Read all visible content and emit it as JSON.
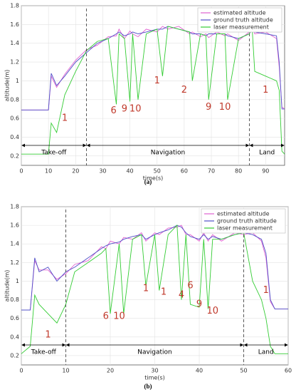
{
  "chart_data": [
    {
      "type": "line",
      "caption": "(a)",
      "xlabel": "time(s)",
      "ylabel": "altitude(m)",
      "xlim": [
        0,
        97
      ],
      "xticks": [
        0,
        10,
        20,
        30,
        40,
        50,
        60,
        70,
        80,
        90
      ],
      "ylim": [
        0.1,
        1.8
      ],
      "yticks": [
        0.2,
        0.4,
        0.6,
        0.8,
        1,
        1.2,
        1.4,
        1.6,
        1.8
      ],
      "grid": true,
      "legend": "upper right",
      "x": [
        0,
        10,
        11,
        13,
        16,
        20,
        24,
        28,
        32,
        35,
        36,
        38,
        40,
        41,
        43,
        46,
        50,
        52,
        54,
        58,
        62,
        63,
        66,
        68,
        69,
        72,
        75,
        76,
        80,
        84,
        85,
        86,
        90,
        94,
        95,
        96,
        97
      ],
      "series": [
        {
          "name": "estimated altitude",
          "color": "#e060d0",
          "values": [
            0.69,
            0.69,
            1.05,
            0.93,
            1.07,
            1.22,
            1.33,
            1.38,
            1.47,
            1.48,
            1.55,
            1.45,
            1.53,
            1.5,
            1.47,
            1.55,
            1.52,
            1.58,
            1.55,
            1.58,
            1.5,
            1.52,
            1.47,
            1.5,
            1.46,
            1.52,
            1.48,
            1.5,
            1.43,
            1.52,
            1.57,
            1.5,
            1.52,
            1.45,
            1.15,
            0.72,
            0.7
          ]
        },
        {
          "name": "ground truth altitude",
          "color": "#5050c8",
          "values": [
            0.69,
            0.69,
            1.08,
            0.95,
            1.05,
            1.2,
            1.3,
            1.4,
            1.45,
            1.5,
            1.52,
            1.48,
            1.5,
            1.52,
            1.5,
            1.52,
            1.55,
            1.55,
            1.58,
            1.55,
            1.52,
            1.5,
            1.5,
            1.48,
            1.5,
            1.5,
            1.5,
            1.48,
            1.45,
            1.5,
            1.55,
            1.52,
            1.5,
            1.48,
            1.2,
            0.7,
            0.7
          ]
        },
        {
          "name": "laser measurement",
          "color": "#33cc33",
          "values": [
            0.22,
            0.22,
            0.55,
            0.45,
            0.85,
            1.1,
            1.32,
            1.42,
            1.45,
            0.75,
            1.5,
            1.45,
            0.78,
            1.5,
            0.8,
            1.5,
            1.55,
            1.05,
            1.58,
            1.55,
            1.52,
            1.0,
            1.5,
            1.48,
            0.8,
            1.5,
            1.5,
            0.8,
            1.45,
            1.5,
            1.58,
            1.1,
            1.05,
            1.0,
            0.9,
            0.25,
            0.22
          ]
        }
      ],
      "phases": [
        {
          "label": "Take-off",
          "x": [
            0,
            24
          ]
        },
        {
          "label": "Navigation",
          "x": [
            24,
            84
          ]
        },
        {
          "label": "Land",
          "x": [
            84,
            97
          ]
        }
      ],
      "annotations": [
        {
          "text": "1",
          "x": 16,
          "y": 0.6
        },
        {
          "text": "6",
          "x": 34,
          "y": 0.68
        },
        {
          "text": "9",
          "x": 38,
          "y": 0.7
        },
        {
          "text": "10",
          "x": 42,
          "y": 0.7
        },
        {
          "text": "1",
          "x": 50,
          "y": 1.0
        },
        {
          "text": "2",
          "x": 60,
          "y": 0.9
        },
        {
          "text": "9",
          "x": 69,
          "y": 0.72
        },
        {
          "text": "10",
          "x": 75,
          "y": 0.72
        },
        {
          "text": "1",
          "x": 90,
          "y": 0.9
        }
      ]
    },
    {
      "type": "line",
      "caption": "(b)",
      "xlabel": "time(s)",
      "ylabel": "altitude(m)",
      "xlim": [
        0,
        60
      ],
      "xticks": [
        0,
        10,
        20,
        30,
        40,
        50,
        60
      ],
      "ylim": [
        0.1,
        1.8
      ],
      "yticks": [
        0.2,
        0.4,
        0.6,
        0.8,
        1,
        1.2,
        1.4,
        1.6,
        1.8
      ],
      "grid": true,
      "legend": "upper right",
      "x": [
        0,
        2,
        3,
        4,
        6,
        8,
        10,
        12,
        15,
        18,
        19,
        20,
        22,
        23,
        25,
        27,
        28,
        30,
        31,
        33,
        35,
        36,
        37,
        38,
        40,
        41,
        42,
        43,
        45,
        48,
        50,
        52,
        54,
        55,
        56,
        57,
        58,
        60
      ],
      "series": [
        {
          "name": "estimated altitude",
          "color": "#e060d0",
          "values": [
            0.69,
            0.69,
            1.22,
            1.12,
            1.12,
            1.02,
            1.08,
            1.18,
            1.22,
            1.37,
            1.35,
            1.43,
            1.4,
            1.47,
            1.45,
            1.52,
            1.43,
            1.52,
            1.5,
            1.57,
            1.58,
            1.6,
            1.5,
            1.5,
            1.43,
            1.52,
            1.43,
            1.5,
            1.43,
            1.52,
            1.5,
            1.52,
            1.43,
            1.25,
            0.78,
            0.7,
            0.7,
            0.7
          ]
        },
        {
          "name": "ground truth altitude",
          "color": "#5050c8",
          "values": [
            0.69,
            0.69,
            1.25,
            1.1,
            1.15,
            1.0,
            1.1,
            1.15,
            1.25,
            1.35,
            1.38,
            1.4,
            1.42,
            1.45,
            1.48,
            1.5,
            1.45,
            1.5,
            1.52,
            1.55,
            1.6,
            1.58,
            1.52,
            1.48,
            1.45,
            1.5,
            1.45,
            1.48,
            1.45,
            1.5,
            1.52,
            1.5,
            1.45,
            1.3,
            0.8,
            0.7,
            0.7,
            0.7
          ]
        },
        {
          "name": "laser measurement",
          "color": "#33cc33",
          "values": [
            0.22,
            0.3,
            0.85,
            0.75,
            0.65,
            0.55,
            0.75,
            1.1,
            1.2,
            1.3,
            1.35,
            0.65,
            1.4,
            0.65,
            1.45,
            1.5,
            0.95,
            1.5,
            0.9,
            1.5,
            1.6,
            0.8,
            1.5,
            0.75,
            0.72,
            1.45,
            0.7,
            1.45,
            1.45,
            1.5,
            1.52,
            1.0,
            0.8,
            0.6,
            0.3,
            0.22,
            0.22,
            0.22
          ]
        }
      ],
      "phases": [
        {
          "label": "Take-off",
          "x": [
            0,
            10
          ]
        },
        {
          "label": "Navigation",
          "x": [
            10,
            50
          ]
        },
        {
          "label": "Land",
          "x": [
            50,
            60
          ]
        }
      ],
      "annotations": [
        {
          "text": "1",
          "x": 6,
          "y": 0.42
        },
        {
          "text": "6",
          "x": 19,
          "y": 0.62
        },
        {
          "text": "10",
          "x": 22,
          "y": 0.62
        },
        {
          "text": "1",
          "x": 28,
          "y": 0.92
        },
        {
          "text": "1",
          "x": 32,
          "y": 0.88
        },
        {
          "text": "4",
          "x": 36,
          "y": 0.85
        },
        {
          "text": "6",
          "x": 38,
          "y": 0.95
        },
        {
          "text": "9",
          "x": 40,
          "y": 0.75
        },
        {
          "text": "10",
          "x": 43,
          "y": 0.68
        },
        {
          "text": "1",
          "x": 55,
          "y": 0.9
        }
      ]
    }
  ]
}
